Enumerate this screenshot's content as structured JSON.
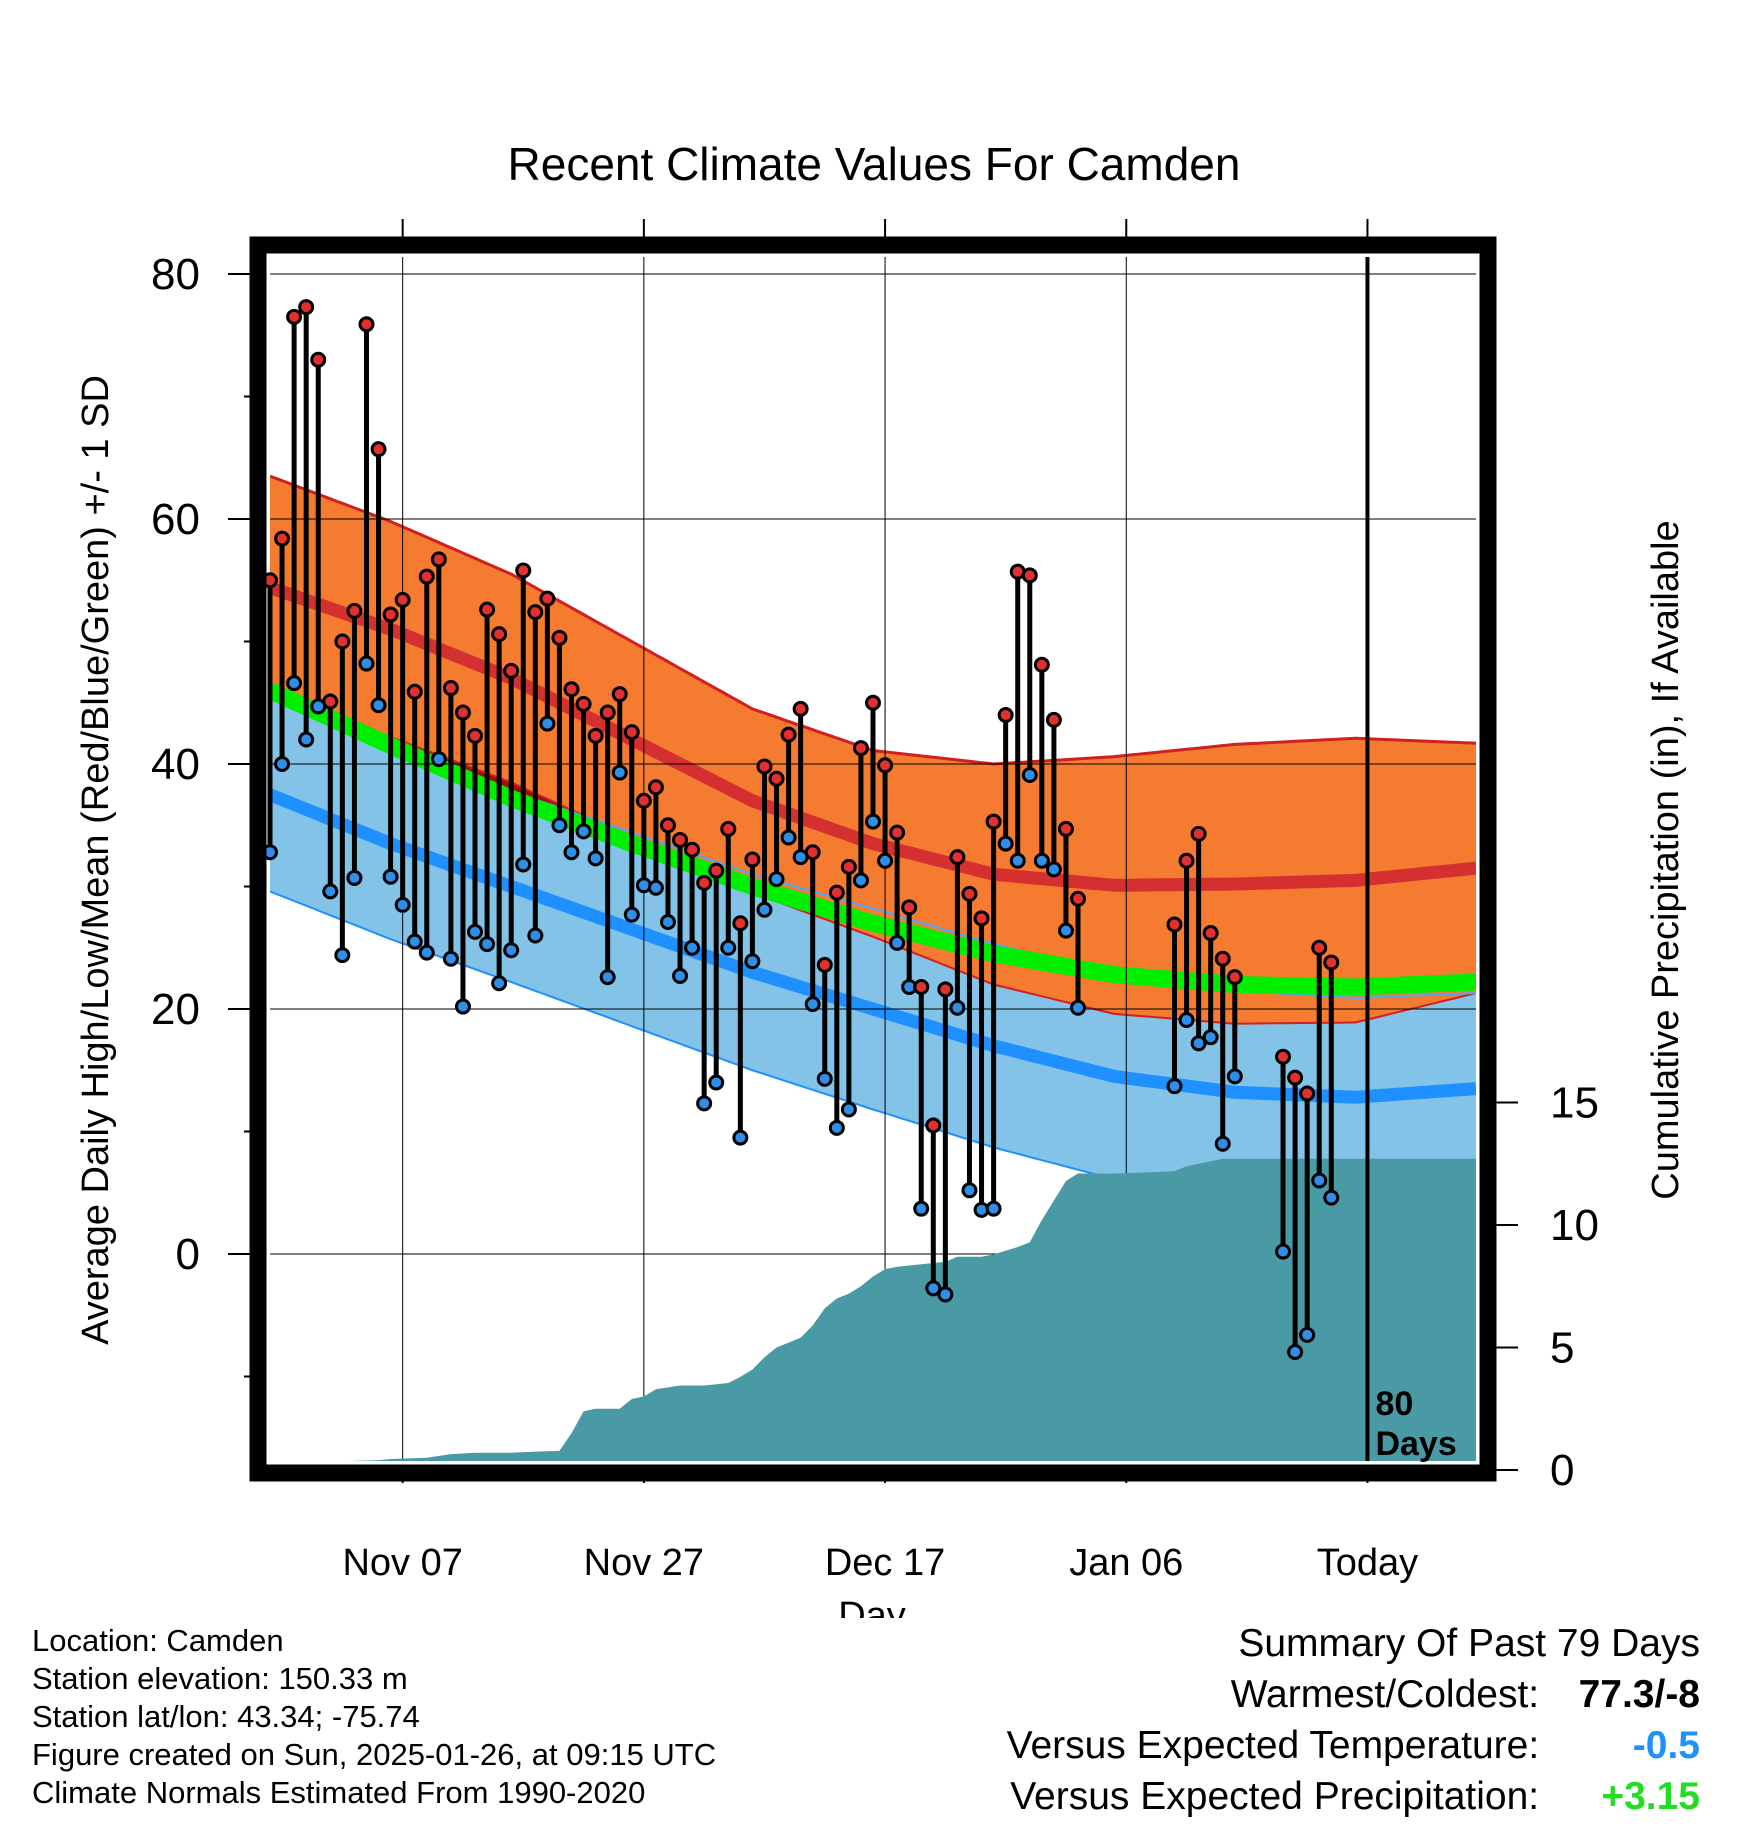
{
  "chart_data": {
    "type": "line",
    "title": "Recent Climate Values For Camden",
    "xlabel": "Day",
    "ylabel_left": "Average Daily High/Low/Mean (Red/Blue/Green) +/- 1 SD",
    "ylabel_right": "Cumulative Precipitation (in), If Available",
    "x_tick_labels": [
      "Nov 07",
      "Nov 27",
      "Dec 17",
      "Jan 06",
      "Today"
    ],
    "y_left_ticks": [
      "0",
      "20",
      "40",
      "60",
      "80"
    ],
    "y_left_range": [
      -17,
      82
    ],
    "y_right_ticks": [
      "0",
      "5",
      "10",
      "15"
    ],
    "y_right_range": [
      0,
      18.5
    ],
    "day_range": [
      -108,
      -8
    ],
    "today_marker_label": [
      "80",
      "Days"
    ],
    "normals": {
      "high_mean": [
        [
          -108,
          54.4
        ],
        [
          -98,
          51.0
        ],
        [
          -88,
          47.0
        ],
        [
          -78,
          42.0
        ],
        [
          -68,
          37.0
        ],
        [
          -58,
          33.5
        ],
        [
          -48,
          31.0
        ],
        [
          -38,
          30.1
        ],
        [
          -28,
          30.2
        ],
        [
          -18,
          30.5
        ],
        [
          -8,
          31.5
        ]
      ],
      "high_sd": [
        [
          -108,
          9.1
        ],
        [
          -98,
          8.8
        ],
        [
          -88,
          8.5
        ],
        [
          -78,
          8.0
        ],
        [
          -68,
          7.5
        ],
        [
          -58,
          7.6
        ],
        [
          -48,
          9.0
        ],
        [
          -38,
          10.5
        ],
        [
          -28,
          11.4
        ],
        [
          -18,
          11.6
        ],
        [
          -8,
          10.2
        ]
      ],
      "mean": [
        [
          -108,
          46.0
        ],
        [
          -98,
          41.5
        ],
        [
          -88,
          37.2
        ],
        [
          -78,
          33.5
        ],
        [
          -68,
          30.0
        ],
        [
          -58,
          27.0
        ],
        [
          -48,
          24.5
        ],
        [
          -38,
          22.8
        ],
        [
          -28,
          22.0
        ],
        [
          -18,
          21.8
        ],
        [
          -8,
          22.2
        ]
      ],
      "low_mean": [
        [
          -108,
          37.5
        ],
        [
          -98,
          33.5
        ],
        [
          -88,
          30.0
        ],
        [
          -78,
          26.5
        ],
        [
          -68,
          23.0
        ],
        [
          -58,
          20.0
        ],
        [
          -48,
          17.0
        ],
        [
          -38,
          14.5
        ],
        [
          -28,
          13.2
        ],
        [
          -18,
          12.8
        ],
        [
          -8,
          13.5
        ]
      ],
      "low_sd": [
        [
          -108,
          7.9
        ],
        [
          -98,
          7.8
        ],
        [
          -88,
          7.8
        ],
        [
          -78,
          7.9
        ],
        [
          -68,
          8.0
        ],
        [
          -58,
          8.2
        ],
        [
          -48,
          8.3
        ],
        [
          -38,
          8.4
        ],
        [
          -28,
          8.3
        ],
        [
          -18,
          8.1
        ],
        [
          -8,
          7.8
        ]
      ]
    },
    "daily": [
      {
        "d": -108,
        "hi": 55.0,
        "lo": 32.8
      },
      {
        "d": -107,
        "hi": 58.4,
        "lo": 40.0
      },
      {
        "d": -106,
        "hi": 76.5,
        "lo": 46.6
      },
      {
        "d": -105,
        "hi": 77.3,
        "lo": 42.0
      },
      {
        "d": -104,
        "hi": 73.0,
        "lo": 44.7
      },
      {
        "d": -103,
        "hi": 45.1,
        "lo": 29.6
      },
      {
        "d": -102,
        "hi": 50.0,
        "lo": 24.4
      },
      {
        "d": -101,
        "hi": 52.5,
        "lo": 30.7
      },
      {
        "d": -100,
        "hi": 75.9,
        "lo": 48.2
      },
      {
        "d": -99,
        "hi": 65.7,
        "lo": 44.8
      },
      {
        "d": -98,
        "hi": 52.2,
        "lo": 30.8
      },
      {
        "d": -97,
        "hi": 53.4,
        "lo": 28.5
      },
      {
        "d": -96,
        "hi": 45.9,
        "lo": 25.5
      },
      {
        "d": -95,
        "hi": 55.3,
        "lo": 24.6
      },
      {
        "d": -94,
        "hi": 56.7,
        "lo": 40.4
      },
      {
        "d": -93,
        "hi": 46.2,
        "lo": 24.1
      },
      {
        "d": -92,
        "hi": 44.2,
        "lo": 20.2
      },
      {
        "d": -91,
        "hi": 42.3,
        "lo": 26.3
      },
      {
        "d": -90,
        "hi": 52.6,
        "lo": 25.3
      },
      {
        "d": -89,
        "hi": 50.6,
        "lo": 22.1
      },
      {
        "d": -88,
        "hi": 47.6,
        "lo": 24.8
      },
      {
        "d": -87,
        "hi": 55.8,
        "lo": 31.8
      },
      {
        "d": -86,
        "hi": 52.4,
        "lo": 26.0
      },
      {
        "d": -85,
        "hi": 53.5,
        "lo": 43.3
      },
      {
        "d": -84,
        "hi": 50.3,
        "lo": 35.0
      },
      {
        "d": -83,
        "hi": 46.1,
        "lo": 32.8
      },
      {
        "d": -82,
        "hi": 44.9,
        "lo": 34.5
      },
      {
        "d": -81,
        "hi": 42.3,
        "lo": 32.3
      },
      {
        "d": -80,
        "hi": 44.2,
        "lo": 22.6
      },
      {
        "d": -79,
        "hi": 45.7,
        "lo": 39.3
      },
      {
        "d": -78,
        "hi": 42.6,
        "lo": 27.7
      },
      {
        "d": -77,
        "hi": 37.0,
        "lo": 30.1
      },
      {
        "d": -76,
        "hi": 38.1,
        "lo": 29.9
      },
      {
        "d": -75,
        "hi": 35.0,
        "lo": 27.1
      },
      {
        "d": -74,
        "hi": 33.8,
        "lo": 22.7
      },
      {
        "d": -73,
        "hi": 33.0,
        "lo": 25.0
      },
      {
        "d": -72,
        "hi": 30.3,
        "lo": 12.3
      },
      {
        "d": -71,
        "hi": 31.3,
        "lo": 14.0
      },
      {
        "d": -70,
        "hi": 34.7,
        "lo": 25.0
      },
      {
        "d": -69,
        "hi": 27.0,
        "lo": 9.5
      },
      {
        "d": -68,
        "hi": 32.2,
        "lo": 23.9
      },
      {
        "d": -67,
        "hi": 39.8,
        "lo": 28.1
      },
      {
        "d": -66,
        "hi": 38.8,
        "lo": 30.6
      },
      {
        "d": -65,
        "hi": 42.4,
        "lo": 34.0
      },
      {
        "d": -64,
        "hi": 44.5,
        "lo": 32.4
      },
      {
        "d": -63,
        "hi": 32.8,
        "lo": 20.4
      },
      {
        "d": -62,
        "hi": 23.6,
        "lo": 14.3
      },
      {
        "d": -61,
        "hi": 29.5,
        "lo": 10.3
      },
      {
        "d": -60,
        "hi": 31.6,
        "lo": 11.8
      },
      {
        "d": -59,
        "hi": 41.3,
        "lo": 30.5
      },
      {
        "d": -58,
        "hi": 45.0,
        "lo": 35.3
      },
      {
        "d": -57,
        "hi": 39.9,
        "lo": 32.1
      },
      {
        "d": -56,
        "hi": 34.4,
        "lo": 25.4
      },
      {
        "d": -55,
        "hi": 28.3,
        "lo": 21.8
      },
      {
        "d": -54,
        "hi": 21.8,
        "lo": 3.7
      },
      {
        "d": -53,
        "hi": 10.5,
        "lo": -2.8
      },
      {
        "d": -52,
        "hi": 21.6,
        "lo": -3.3
      },
      {
        "d": -51,
        "hi": 32.4,
        "lo": 20.1
      },
      {
        "d": -50,
        "hi": 29.4,
        "lo": 5.2
      },
      {
        "d": -49,
        "hi": 27.4,
        "lo": 3.6
      },
      {
        "d": -48,
        "hi": 35.3,
        "lo": 3.7
      },
      {
        "d": -47,
        "hi": 44.0,
        "lo": 33.5
      },
      {
        "d": -46,
        "hi": 55.7,
        "lo": 32.1
      },
      {
        "d": -45,
        "hi": 55.4,
        "lo": 39.1
      },
      {
        "d": -44,
        "hi": 48.1,
        "lo": 32.1
      },
      {
        "d": -43,
        "hi": 43.6,
        "lo": 31.4
      },
      {
        "d": -42,
        "hi": 34.7,
        "lo": 26.4
      },
      {
        "d": -41,
        "hi": 29.0,
        "lo": 20.1
      },
      {
        "d": -33,
        "hi": 26.9,
        "lo": 13.7
      },
      {
        "d": -32,
        "hi": 32.1,
        "lo": 19.1
      },
      {
        "d": -31,
        "hi": 34.3,
        "lo": 17.2
      },
      {
        "d": -30,
        "hi": 26.2,
        "lo": 17.7
      },
      {
        "d": -29,
        "hi": 24.1,
        "lo": 9.0
      },
      {
        "d": -28,
        "hi": 22.6,
        "lo": 14.5
      },
      {
        "d": -24,
        "hi": 16.1,
        "lo": 0.2
      },
      {
        "d": -23,
        "hi": 14.4,
        "lo": -8.0
      },
      {
        "d": -22,
        "hi": 13.1,
        "lo": -6.6
      },
      {
        "d": -21,
        "hi": 25.0,
        "lo": 6.0
      },
      {
        "d": -20,
        "hi": 23.8,
        "lo": 4.6
      }
    ],
    "cumulative_precip": [
      [
        -108,
        0.0
      ],
      [
        -104,
        0.0
      ],
      [
        -103,
        0.35
      ],
      [
        -99,
        0.4
      ],
      [
        -98,
        0.45
      ],
      [
        -95,
        0.5
      ],
      [
        -93,
        0.65
      ],
      [
        -91,
        0.7
      ],
      [
        -88,
        0.7
      ],
      [
        -86,
        0.75
      ],
      [
        -84,
        0.78
      ],
      [
        -83,
        1.5
      ],
      [
        -82,
        2.4
      ],
      [
        -81,
        2.5
      ],
      [
        -79,
        2.5
      ],
      [
        -78,
        2.9
      ],
      [
        -77,
        3.0
      ],
      [
        -76,
        3.3
      ],
      [
        -74,
        3.45
      ],
      [
        -72,
        3.45
      ],
      [
        -70,
        3.55
      ],
      [
        -69,
        3.8
      ],
      [
        -68,
        4.1
      ],
      [
        -67,
        4.6
      ],
      [
        -66,
        5.0
      ],
      [
        -64,
        5.4
      ],
      [
        -63,
        5.9
      ],
      [
        -62,
        6.6
      ],
      [
        -61,
        7.0
      ],
      [
        -60,
        7.2
      ],
      [
        -59,
        7.5
      ],
      [
        -58,
        7.9
      ],
      [
        -57,
        8.2
      ],
      [
        -56,
        8.3
      ],
      [
        -54,
        8.4
      ],
      [
        -52,
        8.5
      ],
      [
        -51,
        8.7
      ],
      [
        -49,
        8.7
      ],
      [
        -48,
        8.8
      ],
      [
        -46,
        9.1
      ],
      [
        -45,
        9.3
      ],
      [
        -44,
        10.2
      ],
      [
        -43,
        11.0
      ],
      [
        -42,
        11.8
      ],
      [
        -41,
        12.1
      ],
      [
        -38,
        12.1
      ],
      [
        -35,
        12.15
      ],
      [
        -33,
        12.2
      ],
      [
        -32,
        12.4
      ],
      [
        -31,
        12.5
      ],
      [
        -30,
        12.6
      ],
      [
        -29,
        12.7
      ],
      [
        -8,
        12.7
      ]
    ]
  },
  "footer": {
    "location": "Location: Camden",
    "elevation": "Station elevation: 150.33 m",
    "latlon": "Station lat/lon: 43.34; -75.74",
    "created": "Figure created on Sun, 2025-01-26, at 09:15 UTC",
    "normals": "Climate Normals Estimated From 1990-2020"
  },
  "summary": {
    "title": "Summary Of Past 79 Days",
    "warmest_label": "Warmest/Coldest:",
    "warmest_value": "77.3/-8",
    "temp_label": "Versus Expected Temperature:",
    "temp_value": "-0.5",
    "precip_label": "Versus Expected Precipitation:",
    "precip_value": "+3.15",
    "colors": {
      "temp": "#1e90ff",
      "precip": "#22dd22"
    }
  }
}
